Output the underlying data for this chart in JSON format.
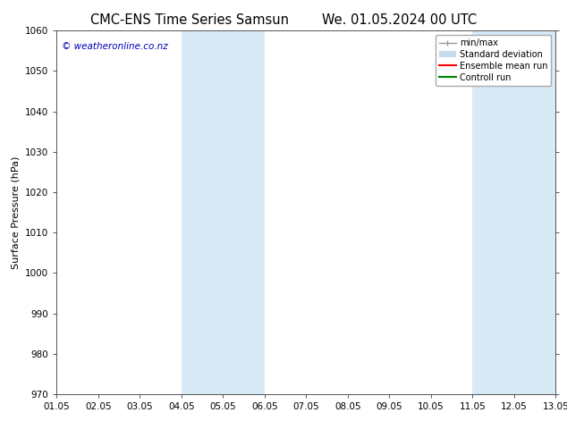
{
  "title_left": "CMC-ENS Time Series Samsun",
  "title_right": "We. 01.05.2024 00 UTC",
  "ylabel": "Surface Pressure (hPa)",
  "ylim": [
    970,
    1060
  ],
  "yticks": [
    970,
    980,
    990,
    1000,
    1010,
    1020,
    1030,
    1040,
    1050,
    1060
  ],
  "xlim_start": 0,
  "xlim_end": 12,
  "xtick_labels": [
    "01.05",
    "02.05",
    "03.05",
    "04.05",
    "05.05",
    "06.05",
    "07.05",
    "08.05",
    "09.05",
    "10.05",
    "11.05",
    "12.05",
    "13.05"
  ],
  "shaded_bands": [
    {
      "x_start": 3,
      "x_end": 5,
      "color": "#d9eaf7"
    },
    {
      "x_start": 10,
      "x_end": 12,
      "color": "#d9eaf7"
    }
  ],
  "watermark": "© weatheronline.co.nz",
  "watermark_color": "#0000bb",
  "legend_entries": [
    {
      "label": "min/max",
      "color": "#999999",
      "lw": 1.0
    },
    {
      "label": "Standard deviation",
      "color": "#c5dcee",
      "lw": 6
    },
    {
      "label": "Ensemble mean run",
      "color": "#ff0000",
      "lw": 1.5
    },
    {
      "label": "Controll run",
      "color": "#008000",
      "lw": 1.5
    }
  ],
  "bg_color": "#ffffff",
  "spine_color": "#555555",
  "title_fontsize": 10.5,
  "label_fontsize": 8,
  "tick_fontsize": 7.5,
  "legend_fontsize": 7,
  "watermark_fontsize": 7.5
}
